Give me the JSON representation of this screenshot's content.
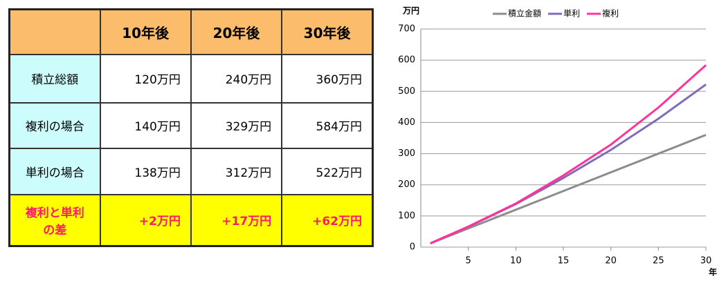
{
  "table": {
    "columns": [
      "10年後",
      "20年後",
      "30年後"
    ],
    "rows": [
      {
        "label": "積立総額",
        "cells": [
          "120万円",
          "240万円",
          "360万円"
        ]
      },
      {
        "label": "複利の場合",
        "cells": [
          "140万円",
          "329万円",
          "584万円"
        ]
      },
      {
        "label": "単利の場合",
        "cells": [
          "138万円",
          "312万円",
          "522万円"
        ]
      },
      {
        "label": "複利と単利の差",
        "cells": [
          "+2万円",
          "+17万円",
          "+62万円"
        ]
      }
    ]
  },
  "chart_data": {
    "type": "line",
    "y_label": "万円",
    "x_label": "年",
    "x": [
      1,
      5,
      10,
      15,
      20,
      25,
      30
    ],
    "series": [
      {
        "name": "積立金額",
        "color": "#8c8c8c",
        "values": [
          12,
          60,
          120,
          180,
          240,
          300,
          360
        ]
      },
      {
        "name": "単利",
        "color": "#7f6bb8",
        "values": [
          12,
          65,
          138,
          222,
          312,
          412,
          522
        ]
      },
      {
        "name": "複利",
        "color": "#ff3399",
        "values": [
          12,
          66,
          140,
          230,
          329,
          448,
          584
        ]
      }
    ],
    "xlim": [
      0,
      30
    ],
    "xticks": [
      5,
      10,
      15,
      20,
      25,
      30
    ],
    "ylim": [
      0,
      700
    ],
    "yticks": [
      0,
      100,
      200,
      300,
      400,
      500,
      600,
      700
    ],
    "grid": true,
    "legend": "top"
  }
}
